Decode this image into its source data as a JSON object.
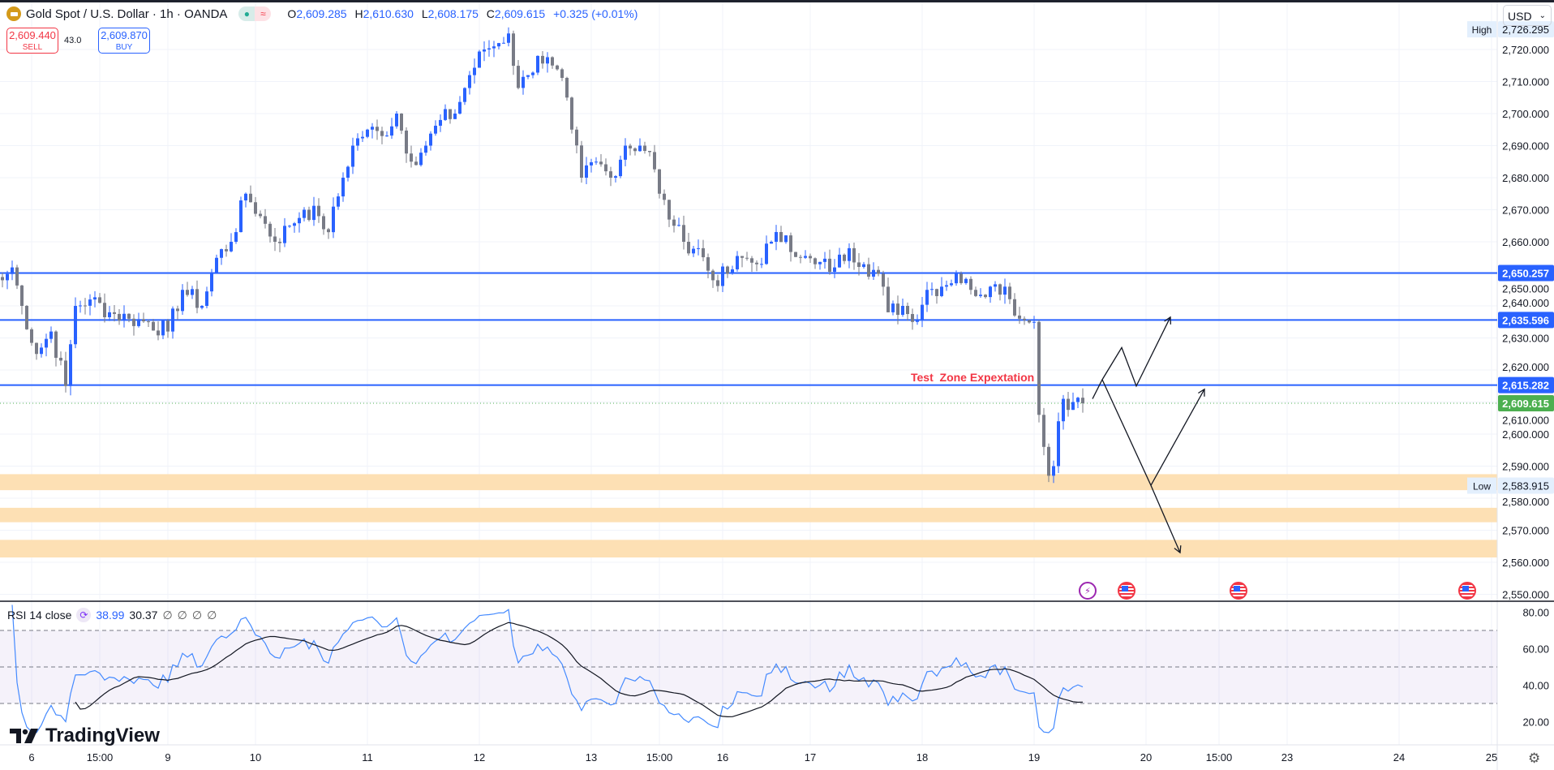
{
  "header": {
    "symbol_title": "Gold Spot / U.S. Dollar · 1h · OANDA",
    "ohlc": {
      "o_label": "O",
      "o": "2,609.285",
      "h_label": "H",
      "h": "2,610.630",
      "l_label": "L",
      "l": "2,608.175",
      "c_label": "C",
      "c": "2,609.615",
      "change": "+0.325 (+0.01%)"
    },
    "sell_price": "2,609.440",
    "sell_label": "SELL",
    "spread": "43.0",
    "buy_price": "2,609.870",
    "buy_label": "BUY",
    "currency": "USD"
  },
  "colors": {
    "up": "#2962ff",
    "down": "#787b86",
    "level": "#2962ff",
    "current": "#4caf50",
    "zone": "#fde0b4",
    "annotation": "#f23645",
    "rsi": "#448aff",
    "rsi_ma": "#131722"
  },
  "chart_data": {
    "type": "candlestick",
    "title": "Gold Spot / U.S. Dollar · 1h · OANDA",
    "ylim": [
      2545,
      2730
    ],
    "yticks": [
      2550,
      2560,
      2570,
      2580,
      2590,
      2600,
      2610,
      2620,
      2630,
      2640,
      2650,
      2660,
      2670,
      2680,
      2690,
      2700,
      2710,
      2720
    ],
    "ytick_labels": [
      "2,550.000",
      "2,560.000",
      "2,570.000",
      "2,580.000",
      "2,590.000",
      "2,600.000",
      "2,610.000",
      "2,620.000",
      "2,630.000",
      "2,640.000",
      "2,650.000",
      "2,660.000",
      "2,670.000",
      "2,680.000",
      "2,690.000",
      "2,700.000",
      "2,710.000",
      "2,720.000"
    ],
    "xtick_labels": [
      {
        "label": "6",
        "hour": 6
      },
      {
        "label": "15:00",
        "hour": 20
      },
      {
        "label": "9",
        "hour": 34
      },
      {
        "label": "10",
        "hour": 52
      },
      {
        "label": "11",
        "hour": 75
      },
      {
        "label": "12",
        "hour": 98
      },
      {
        "label": "13",
        "hour": 121
      },
      {
        "label": "15:00",
        "hour": 135
      },
      {
        "label": "16",
        "hour": 148
      },
      {
        "label": "17",
        "hour": 166
      },
      {
        "label": "18",
        "hour": 189
      },
      {
        "label": "19",
        "hour": 212
      },
      {
        "label": "20",
        "hour": 235
      },
      {
        "label": "15:00",
        "hour": 250
      },
      {
        "label": "23",
        "hour": 264
      },
      {
        "label": "24",
        "hour": 287
      },
      {
        "label": "25",
        "hour": 306
      }
    ],
    "close_waypoints": [
      [
        0,
        2648
      ],
      [
        2,
        2652
      ],
      [
        4,
        2640
      ],
      [
        7,
        2625
      ],
      [
        10,
        2632
      ],
      [
        13,
        2615
      ],
      [
        15,
        2640
      ],
      [
        18,
        2642
      ],
      [
        22,
        2638
      ],
      [
        26,
        2636
      ],
      [
        30,
        2635
      ],
      [
        34,
        2632
      ],
      [
        37,
        2645
      ],
      [
        41,
        2640
      ],
      [
        44,
        2655
      ],
      [
        47,
        2660
      ],
      [
        50,
        2675
      ],
      [
        53,
        2668
      ],
      [
        56,
        2660
      ],
      [
        59,
        2665
      ],
      [
        62,
        2670
      ],
      [
        65,
        2668
      ],
      [
        67,
        2663
      ],
      [
        70,
        2680
      ],
      [
        72,
        2690
      ],
      [
        75,
        2695
      ],
      [
        78,
        2693
      ],
      [
        81,
        2700
      ],
      [
        84,
        2685
      ],
      [
        87,
        2690
      ],
      [
        90,
        2698
      ],
      [
        93,
        2700
      ],
      [
        96,
        2712
      ],
      [
        99,
        2720
      ],
      [
        102,
        2722
      ],
      [
        104,
        2725
      ],
      [
        106,
        2708
      ],
      [
        108,
        2712
      ],
      [
        110,
        2718
      ],
      [
        113,
        2715
      ],
      [
        116,
        2705
      ],
      [
        117,
        2695
      ],
      [
        119,
        2680
      ],
      [
        122,
        2685
      ],
      [
        125,
        2680
      ],
      [
        128,
        2690
      ],
      [
        131,
        2690
      ],
      [
        133,
        2688
      ],
      [
        135,
        2675
      ],
      [
        138,
        2665
      ],
      [
        140,
        2660
      ],
      [
        143,
        2658
      ],
      [
        146,
        2648
      ],
      [
        149,
        2650
      ],
      [
        152,
        2655
      ],
      [
        155,
        2653
      ],
      [
        158,
        2660
      ],
      [
        161,
        2662
      ],
      [
        164,
        2655
      ],
      [
        167,
        2653
      ],
      [
        171,
        2652
      ],
      [
        174,
        2658
      ],
      [
        177,
        2653
      ],
      [
        180,
        2650
      ],
      [
        182,
        2638
      ],
      [
        185,
        2640
      ],
      [
        187,
        2635
      ],
      [
        190,
        2645
      ],
      [
        193,
        2646
      ],
      [
        196,
        2650
      ],
      [
        199,
        2645
      ],
      [
        203,
        2646
      ],
      [
        206,
        2646
      ],
      [
        209,
        2636
      ],
      [
        212,
        2635
      ],
      [
        213,
        2606
      ],
      [
        214,
        2596
      ],
      [
        215,
        2587
      ],
      [
        216,
        2590
      ],
      [
        217,
        2604
      ],
      [
        218,
        2611
      ],
      [
        220,
        2610
      ],
      [
        222,
        2609.615
      ]
    ],
    "high": {
      "label": "High",
      "value": "2,726.295",
      "price": 2726.295
    },
    "low": {
      "label": "Low",
      "value": "2,583.915",
      "price": 2583.915
    },
    "levels": [
      {
        "price": 2650.257,
        "label": "2,650.257"
      },
      {
        "price": 2635.596,
        "label": "2,635.596"
      },
      {
        "price": 2615.282,
        "label": "2,615.282"
      }
    ],
    "current": {
      "price": 2609.615,
      "label": "2,609.615"
    },
    "zones": [
      [
        2582.5,
        2587.5
      ],
      [
        2572.5,
        2577
      ],
      [
        2561.5,
        2567
      ]
    ],
    "annotation": "Test  Zone Expextation",
    "projection_paths": [
      [
        [
          224,
          2611
        ],
        [
          226,
          2617
        ],
        [
          230,
          2627
        ],
        [
          233,
          2615
        ],
        [
          240,
          2636.5
        ]
      ],
      [
        [
          226,
          2617
        ],
        [
          236,
          2584
        ],
        [
          247,
          2614
        ]
      ],
      [
        [
          236,
          2584
        ],
        [
          242,
          2563
        ]
      ]
    ]
  },
  "rsi": {
    "title": "RSI 14 close",
    "value": "38.99",
    "ma_value": "30.37",
    "extras": [
      "∅",
      "∅",
      "∅",
      "∅"
    ],
    "ylim": [
      14,
      84
    ],
    "bands": [
      30,
      70
    ],
    "mid": 50,
    "yticks": [
      20,
      40,
      60,
      80
    ],
    "ytick_labels": [
      "20.00",
      "40.00",
      "60.00",
      "80.00"
    ]
  },
  "events": [
    {
      "icon": "lightning-icon",
      "hour": 223
    },
    {
      "icon": "us-flag-icon",
      "hour": 231
    },
    {
      "icon": "us-flag-icon",
      "hour": 254
    },
    {
      "icon": "us-flag-icon",
      "hour": 301
    }
  ],
  "branding": "TradingView"
}
